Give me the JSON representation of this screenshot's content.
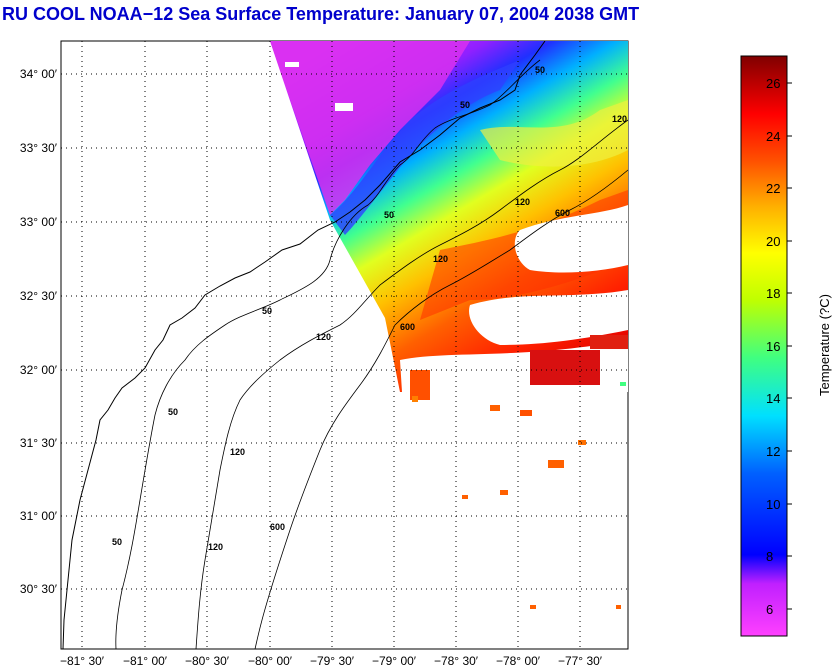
{
  "title": "RU COOL  NOAA−12  Sea Surface Temperature:  January 07, 2004 2038 GMT",
  "map": {
    "lat_ticks": [
      "34° 00′",
      "33° 30′",
      "33° 00′",
      "32° 30′",
      "32° 00′",
      "31° 30′",
      "31° 00′",
      "30° 30′"
    ],
    "lon_ticks": [
      "−81° 30′",
      "−81° 00′",
      "−80° 30′",
      "−80° 00′",
      "−79° 30′",
      "−79° 00′",
      "−78° 30′",
      "−78° 00′",
      "−77° 30′"
    ],
    "contour_labels": [
      "50",
      "50",
      "120",
      "600",
      "120",
      "600",
      "50",
      "120",
      "50",
      "120",
      "600",
      "50",
      "120",
      "50",
      "120"
    ]
  },
  "colorbar": {
    "label": "Temperature (?C)",
    "ticks": [
      "26",
      "24",
      "22",
      "20",
      "18",
      "16",
      "14",
      "12",
      "10",
      "8",
      "6"
    ],
    "min": 5,
    "max": 27,
    "colors": {
      "low": "#ff00ff",
      "mid_low": "#0000ff",
      "mid": "#00ffff",
      "mid_high": "#ffff00",
      "high": "#ff0000",
      "top": "#800000"
    }
  }
}
